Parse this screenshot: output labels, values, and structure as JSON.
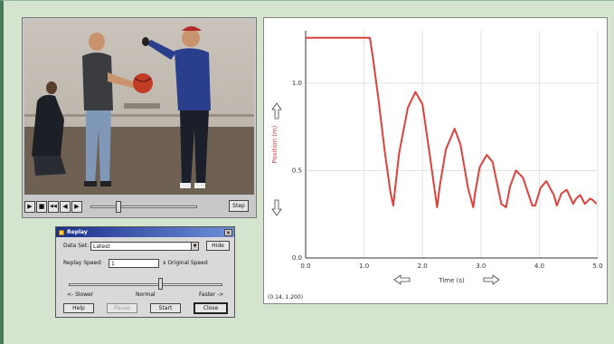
{
  "video": {
    "step_label": "Step",
    "transport_icons": [
      "play-icon",
      "stop-icon",
      "skip-back-icon",
      "step-back-icon",
      "step-forward-icon"
    ],
    "transport_glyphs": [
      "▶",
      "■",
      "◀◀",
      "◀",
      "▶"
    ],
    "scrub_position": 0.25
  },
  "replay": {
    "title": "Replay",
    "data_set_label": "Data Set:",
    "data_set_value": "Latest",
    "hide_label": "Hide",
    "speed_label": "Replay Speed:",
    "speed_value": "1",
    "speed_suffix": "x Original Speed",
    "speed_slow": "<- Slower",
    "speed_normal": "Normal",
    "speed_fast": "Faster ->",
    "speed_position": 0.6,
    "buttons": {
      "help": "Help",
      "pause": "Pause",
      "start": "Start",
      "close": "Close"
    }
  },
  "graph": {
    "coordinate_readout": "(0.14, 1.200)",
    "colors": {
      "curve": "#e0403a",
      "grid": "#e2e2e2",
      "axis": "#333333"
    }
  },
  "chart_data": {
    "type": "line",
    "xlabel": "Time (s)",
    "ylabel": "Position (m)",
    "xlim": [
      0,
      5
    ],
    "ylim": [
      0,
      1.3
    ],
    "x_ticks": [
      "0.0",
      "1.0",
      "2.0",
      "3.0",
      "4.0",
      "5.0"
    ],
    "y_ticks": [
      "0.0",
      "0.5",
      "1.0"
    ],
    "grid": true,
    "series": [
      {
        "color": "#e0403a",
        "x": [
          0.0,
          1.1,
          1.15,
          1.25,
          1.35,
          1.45,
          1.5,
          1.6,
          1.75,
          1.88,
          2.0,
          2.12,
          2.25,
          2.3,
          2.4,
          2.55,
          2.65,
          2.78,
          2.87,
          2.9,
          2.98,
          3.1,
          3.2,
          3.35,
          3.43,
          3.5,
          3.6,
          3.72,
          3.88,
          3.93,
          4.02,
          4.12,
          4.25,
          4.3,
          4.38,
          4.47,
          4.58,
          4.63,
          4.7,
          4.78,
          4.87,
          4.92,
          4.98
        ],
        "y": [
          1.26,
          1.26,
          1.15,
          0.9,
          0.62,
          0.38,
          0.3,
          0.6,
          0.86,
          0.95,
          0.88,
          0.6,
          0.29,
          0.42,
          0.62,
          0.74,
          0.65,
          0.4,
          0.29,
          0.37,
          0.52,
          0.59,
          0.55,
          0.31,
          0.29,
          0.41,
          0.5,
          0.46,
          0.3,
          0.3,
          0.4,
          0.44,
          0.36,
          0.3,
          0.37,
          0.39,
          0.31,
          0.34,
          0.36,
          0.31,
          0.34,
          0.33,
          0.31
        ]
      }
    ]
  }
}
